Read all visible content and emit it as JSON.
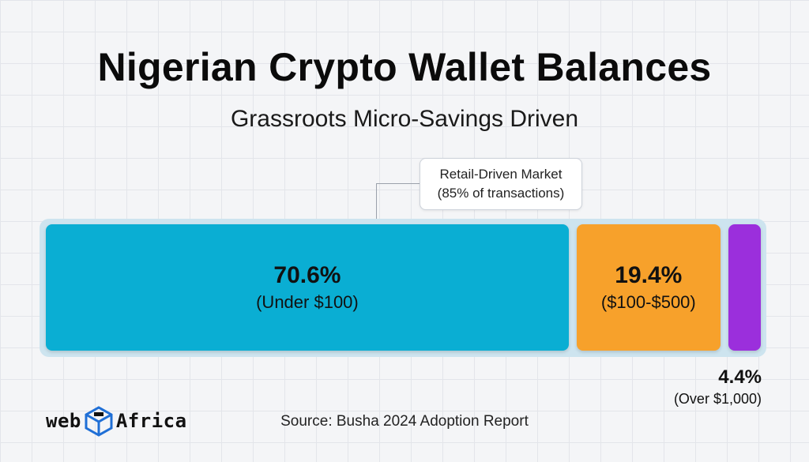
{
  "chart_data": {
    "type": "bar",
    "orientation": "horizontal-stacked",
    "title": "Nigerian Crypto Wallet Balances",
    "subtitle": "Grassroots Micro-Savings Driven",
    "segments": [
      {
        "value": 70.6,
        "value_label": "70.6%",
        "range_label": "(Under $100)",
        "color": "#0aaed3"
      },
      {
        "value": 19.4,
        "value_label": "19.4%",
        "range_label": "($100-$500)",
        "color": "#f7a12b"
      },
      {
        "value": 4.4,
        "value_label": "4.4%",
        "range_label": "(Over $1,000)",
        "color": "#9b2fdc"
      }
    ],
    "annotation": {
      "line1": "Retail-Driven Market",
      "line2": "(85% of transactions)"
    },
    "source": "Source: Busha 2024 Adoption Report"
  },
  "logo": {
    "left_text": "web",
    "right_text": "Africa"
  },
  "colors": {
    "frame": "#cde4ef",
    "text": "#111111"
  }
}
